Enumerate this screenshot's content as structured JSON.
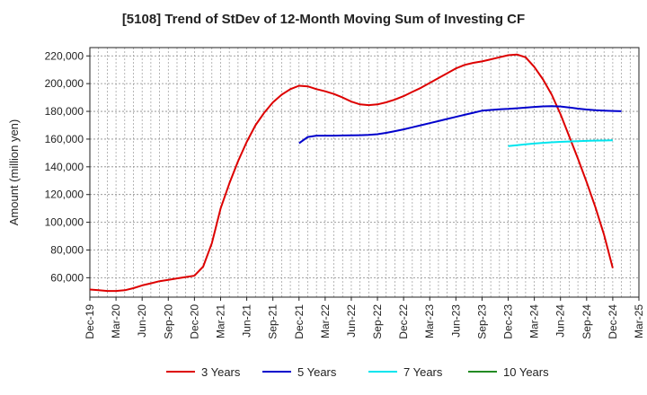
{
  "chart_data": {
    "type": "line",
    "title": "[5108]  Trend of StDev of 12-Month Moving Sum of Investing CF",
    "xlabel": "",
    "ylabel": "Amount (million yen)",
    "x_tick_labels": [
      "Dec-19",
      "Mar-20",
      "Jun-20",
      "Sep-20",
      "Dec-20",
      "Mar-21",
      "Jun-21",
      "Sep-21",
      "Dec-21",
      "Mar-22",
      "Jun-22",
      "Sep-22",
      "Dec-22",
      "Mar-23",
      "Jun-23",
      "Sep-23",
      "Dec-23",
      "Mar-24",
      "Jun-24",
      "Sep-24",
      "Dec-24",
      "Mar-25"
    ],
    "y_tick_labels": [
      "60,000",
      "80,000",
      "100,000",
      "120,000",
      "140,000",
      "160,000",
      "180,000",
      "200,000",
      "220,000"
    ],
    "ylim": [
      46000,
      226000
    ],
    "grid": true,
    "legend_position": "bottom",
    "series": [
      {
        "name": "3 Years",
        "color": "#dd0000",
        "start": "Dec-19",
        "values": [
          51500,
          51000,
          50500,
          50500,
          51000,
          52500,
          54500,
          56000,
          57500,
          58500,
          59500,
          60500,
          61500,
          68000,
          85000,
          110000,
          128000,
          144000,
          158000,
          170000,
          179000,
          186500,
          192000,
          196000,
          198500,
          198000,
          196000,
          194500,
          192500,
          190000,
          187000,
          185000,
          184500,
          185000,
          186500,
          188500,
          191000,
          194000,
          197000,
          200500,
          204000,
          207500,
          211000,
          213500,
          215000,
          216000,
          217500,
          219000,
          220500,
          221000,
          219000,
          212000,
          203000,
          192000,
          178000,
          162000,
          146000,
          129000,
          111000,
          91000,
          67000
        ]
      },
      {
        "name": "5 Years",
        "color": "#0000cc",
        "start": "Dec-21",
        "values": [
          157000,
          161500,
          162500,
          162500,
          162500,
          162600,
          162700,
          162800,
          163000,
          163500,
          164500,
          165700,
          167000,
          168500,
          170000,
          171500,
          173000,
          174500,
          176000,
          177500,
          179000,
          180500,
          181000,
          181500,
          181800,
          182200,
          182700,
          183200,
          183600,
          183800,
          183500,
          182800,
          182000,
          181300,
          180800,
          180500,
          180300,
          180100
        ]
      },
      {
        "name": "7 Years",
        "color": "#00e5ee",
        "start": "Dec-23",
        "values": [
          155000,
          155600,
          156200,
          156800,
          157300,
          157700,
          158000,
          158300,
          158500,
          158700,
          158900,
          159000,
          159100
        ]
      },
      {
        "name": "10 Years",
        "color": "#228b22",
        "start": "Dec-24",
        "values": []
      }
    ]
  }
}
